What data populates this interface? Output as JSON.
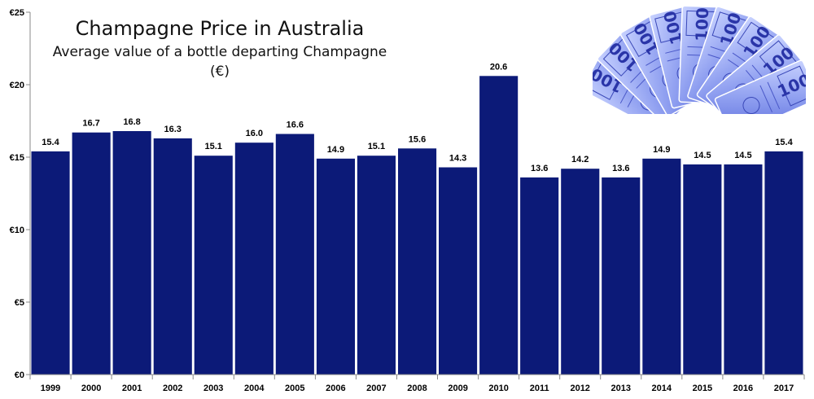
{
  "chart_data": {
    "type": "bar",
    "title": "Champagne Price in Australia",
    "subtitle": "Average value of a bottle departing Champagne (€)",
    "categories": [
      "1999",
      "2000",
      "2001",
      "2002",
      "2003",
      "2004",
      "2005",
      "2006",
      "2007",
      "2008",
      "2009",
      "2010",
      "2011",
      "2012",
      "2013",
      "2014",
      "2015",
      "2016",
      "2017"
    ],
    "values": [
      15.4,
      16.7,
      16.8,
      16.3,
      15.1,
      16.0,
      16.6,
      14.9,
      15.1,
      15.6,
      14.3,
      20.6,
      13.6,
      14.2,
      13.6,
      14.9,
      14.5,
      14.5,
      15.4
    ],
    "data_labels": [
      "15.4",
      "16.7",
      "16.8",
      "16.3",
      "15.1",
      "16.0",
      "16.6",
      "14.9",
      "15.1",
      "15.6",
      "14.3",
      "20.6",
      "13.6",
      "14.2",
      "13.6",
      "14.9",
      "14.5",
      "14.5",
      "15.4"
    ],
    "ylim": [
      0,
      25
    ],
    "yticks": [
      0,
      5,
      10,
      15,
      20,
      25
    ],
    "ytick_labels": [
      "€0",
      "€5",
      "€10",
      "€15",
      "€20",
      "€25"
    ],
    "xlabel": "",
    "ylabel": "",
    "grid": false,
    "bar_color": "#0c1a78",
    "image": {
      "description": "fan of Australian 100 banknotes, blue tint",
      "banknote_text": "100"
    }
  }
}
